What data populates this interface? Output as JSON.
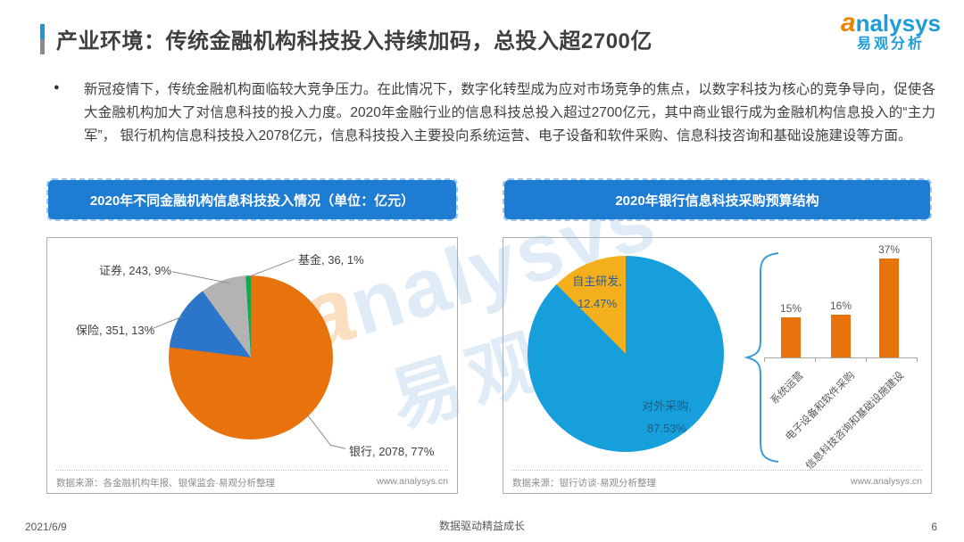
{
  "page": {
    "title": "产业环境：传统金融机构科技投入持续加码，总投入超2700亿",
    "date": "2021/6/9",
    "slogan": "数据驱动精益成长",
    "page_number": "6"
  },
  "logo": {
    "swirl": "a",
    "brand": "nalysys",
    "subtitle": "易观分析"
  },
  "intro": {
    "bullet": "●",
    "text": "新冠疫情下，传统金融机构面临较大竞争压力。在此情况下，数字化转型成为应对市场竞争的焦点，以数字科技为核心的竞争导向，促使各大金融机构加大了对信息科技的投入力度。2020年金融行业的信息科技总投入超过2700亿元，其中商业银行成为金融机构信息投入的“主力军”， 银行机构信息科技投入2078亿元，信息科技投入主要投向系统运营、电子设备和软件采购、信息科技咨询和基础设施建设等方面。"
  },
  "left_panel": {
    "header": "2020年不同金融机构信息科技投入情况（单位：亿元）",
    "source": "数据来源：各金融机构年报、银保监会·易观分析整理",
    "site": "www.analysys.cn"
  },
  "right_panel": {
    "header": "2020年银行信息科技采购预算结构",
    "source": "数据来源：银行访谈·易观分析整理",
    "site": "www.analysys.cn"
  },
  "chart_data": [
    {
      "type": "pie",
      "title": "2020年不同金融机构信息科技投入情况（单位：亿元）",
      "unit": "亿元",
      "start_angle_deg": 0,
      "direction": "clockwise",
      "legend": "callout-labels",
      "slices": [
        {
          "name": "银行",
          "value": 2078,
          "pct": 77,
          "color": "#E8730C",
          "callout": "银行, 2078, 77%"
        },
        {
          "name": "保险",
          "value": 351,
          "pct": 13,
          "color": "#2B76C9",
          "callout": "保险, 351, 13%"
        },
        {
          "name": "证券",
          "value": 243,
          "pct": 9,
          "color": "#B3B3B3",
          "callout": "证券, 243, 9%"
        },
        {
          "name": "基金",
          "value": 36,
          "pct": 1,
          "color": "#12A84D",
          "callout": "基金, 36, 1%"
        }
      ]
    },
    {
      "type": "pie",
      "title": "2020年银行信息科技采购预算结构",
      "start_angle_deg": 0,
      "direction": "clockwise",
      "legend": "inside-labels",
      "slices": [
        {
          "name": "对外采购",
          "pct": 87.53,
          "color": "#169FDB",
          "label_line1": "对外采购,",
          "label_line2": "87.53%"
        },
        {
          "name": "自主研发",
          "pct": 12.47,
          "color": "#F3B01C",
          "label_line1": "自主研发,",
          "label_line2": "12.47%"
        }
      ]
    },
    {
      "type": "bar",
      "categories": [
        "系统运营",
        "电子设备和软件采购",
        "信息科技咨询和基础设施建设"
      ],
      "values": [
        15,
        16,
        37
      ],
      "value_labels": [
        "15%",
        "16%",
        "37%"
      ],
      "bar_color": "#E8730C",
      "ylim": [
        0,
        40
      ]
    }
  ]
}
